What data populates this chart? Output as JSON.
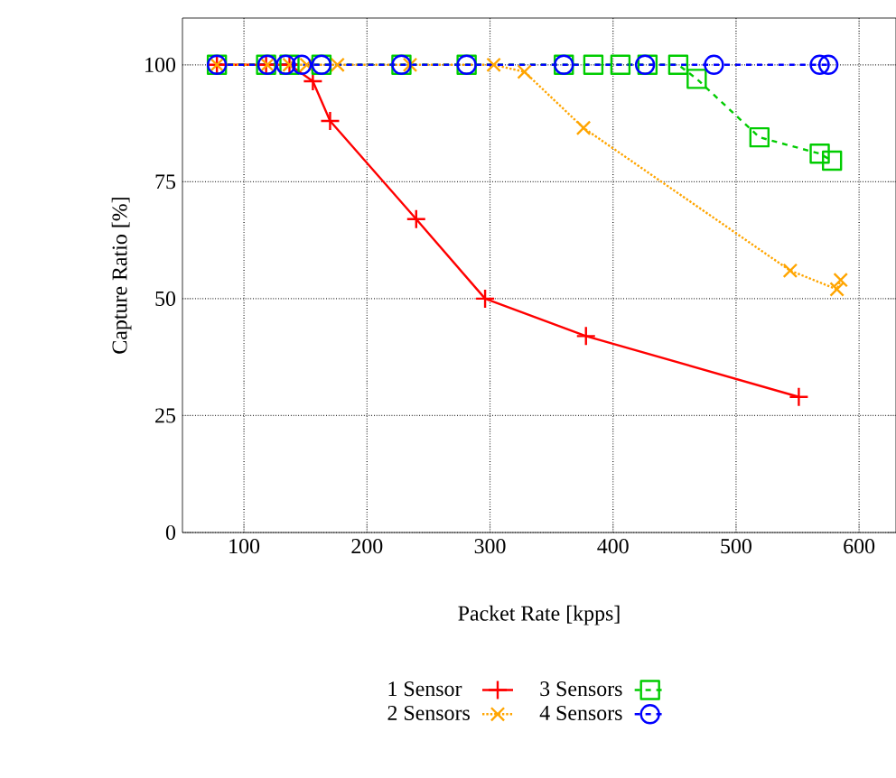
{
  "chart_data": {
    "type": "line",
    "xlabel": "Packet Rate [kpps]",
    "ylabel": "Capture Ratio [%]",
    "xlim": [
      50,
      630
    ],
    "ylim": [
      0,
      110
    ],
    "xticks": [
      100,
      200,
      300,
      400,
      500,
      600
    ],
    "yticks": [
      0,
      25,
      50,
      75,
      100
    ],
    "grid": true,
    "legend": "bottom",
    "series": [
      {
        "name": "1 Sensor",
        "color": "#ff0000",
        "marker": "plus",
        "line_style": "solid",
        "x": [
          78,
          118,
          137,
          156,
          170,
          240,
          296,
          378,
          551
        ],
        "values": [
          100,
          100,
          100,
          96.5,
          88,
          67,
          50,
          42,
          29
        ]
      },
      {
        "name": "2 Sensors",
        "color": "#ffa500",
        "marker": "cross",
        "line_style": "dotted",
        "x": [
          78,
          119,
          137,
          151,
          176,
          235,
          303,
          328,
          376,
          544,
          582,
          585
        ],
        "values": [
          100,
          100,
          100,
          100,
          100,
          100,
          100,
          98.5,
          86.5,
          56,
          52,
          54
        ]
      },
      {
        "name": "3 Sensors",
        "color": "#00cc00",
        "marker": "square",
        "line_style": "dashed",
        "x": [
          78,
          118,
          137,
          163,
          228,
          281,
          360,
          384,
          406,
          428,
          453,
          468,
          519,
          568,
          578
        ],
        "values": [
          100,
          100,
          100,
          100,
          100,
          100,
          100,
          100,
          100,
          100,
          100,
          97,
          84.5,
          81,
          79.5
        ]
      },
      {
        "name": "4 Sensors",
        "color": "#0000ff",
        "marker": "circle",
        "line_style": "dashed",
        "x": [
          78,
          119,
          134,
          147,
          163,
          228,
          281,
          360,
          426,
          482,
          568,
          575
        ],
        "values": [
          100,
          100,
          100,
          100,
          100,
          100,
          100,
          100,
          100,
          100,
          100,
          100
        ]
      }
    ]
  }
}
